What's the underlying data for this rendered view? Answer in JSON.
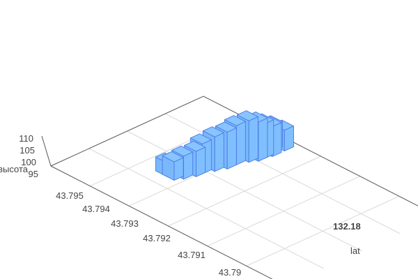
{
  "chart_data": {
    "type": "bar3d",
    "x_axis": {
      "title": "lat",
      "ticks": [
        "132.18"
      ],
      "range": [
        132.165,
        132.19
      ]
    },
    "y_axis": {
      "title": "",
      "ticks": [
        "43.795",
        "43.794",
        "43.793",
        "43.792",
        "43.791",
        "43.79"
      ],
      "range": [
        43.7955,
        43.7885
      ]
    },
    "z_axis": {
      "title": "высота",
      "ticks": [
        "95",
        "100",
        "105",
        "110"
      ],
      "range": [
        92,
        112
      ]
    },
    "grid": true,
    "colors": {
      "bar_fill": "#80bfff",
      "bar_stroke": "#4d7fe6",
      "grid": "#d9d9d9",
      "axis": "#555555"
    },
    "bars": [
      {
        "lat": 132.1885,
        "lon": 43.79285,
        "z": 101
      },
      {
        "lat": 132.1875,
        "lon": 43.793,
        "z": 103
      },
      {
        "lat": 132.1865,
        "lon": 43.79285,
        "z": 105
      },
      {
        "lat": 132.1855,
        "lon": 43.7929,
        "z": 107
      },
      {
        "lat": 132.1845,
        "lon": 43.7929,
        "z": 109
      },
      {
        "lat": 132.1835,
        "lon": 43.793,
        "z": 110
      },
      {
        "lat": 132.182,
        "lon": 43.7931,
        "z": 109
      },
      {
        "lat": 132.1805,
        "lon": 43.7931,
        "z": 108
      },
      {
        "lat": 132.179,
        "lon": 43.7932,
        "z": 107
      },
      {
        "lat": 132.1775,
        "lon": 43.7933,
        "z": 105
      },
      {
        "lat": 132.1765,
        "lon": 43.7933,
        "z": 103
      },
      {
        "lat": 132.175,
        "lon": 43.7934,
        "z": 102
      },
      {
        "lat": 132.174,
        "lon": 43.7935,
        "z": 100
      },
      {
        "lat": 132.174,
        "lon": 43.7937,
        "z": 98
      }
    ]
  }
}
